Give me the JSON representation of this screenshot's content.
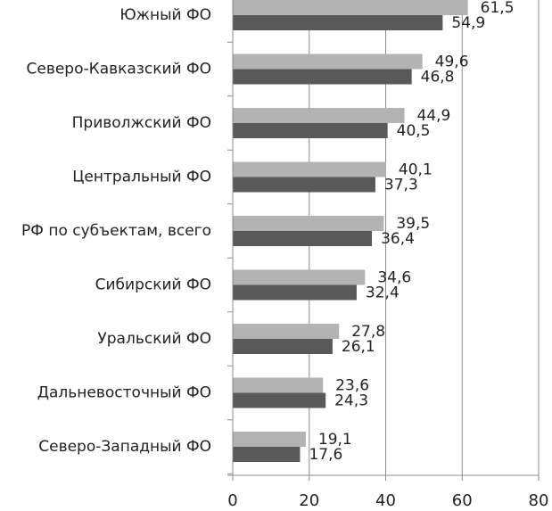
{
  "chart_data": {
    "type": "bar",
    "orientation": "horizontal",
    "categories": [
      "Южный ФО",
      "Северо-Кавказский ФО",
      "Приволжский ФО",
      "Центральный ФО",
      "РФ по субъектам, всего",
      "Сибирский ФО",
      "Уральский ФО",
      "Дальневосточный ФО",
      "Северо-Западный ФО"
    ],
    "series": [
      {
        "values": [
          61.5,
          49.6,
          44.9,
          40.1,
          39.5,
          34.6,
          27.8,
          23.6,
          19.1
        ],
        "labels": [
          "61,5",
          "49,6",
          "44,9",
          "40,1",
          "39,5",
          "34,6",
          "27,8",
          "23,6",
          "19,1"
        ],
        "color": "#b3b3b3"
      },
      {
        "values": [
          54.9,
          46.8,
          40.5,
          37.3,
          36.4,
          32.4,
          26.1,
          24.3,
          17.6
        ],
        "labels": [
          "54,9",
          "46,8",
          "40,5",
          "37,3",
          "36,4",
          "32,4",
          "26,1",
          "24,3",
          "17,6"
        ],
        "color": "#595959"
      }
    ],
    "xlim": [
      0,
      80
    ],
    "xticks": [
      0,
      20,
      40,
      60,
      80
    ],
    "xtick_labels": [
      "0",
      "20",
      "40",
      "60",
      "80"
    ],
    "grid": true,
    "legend": "none"
  }
}
